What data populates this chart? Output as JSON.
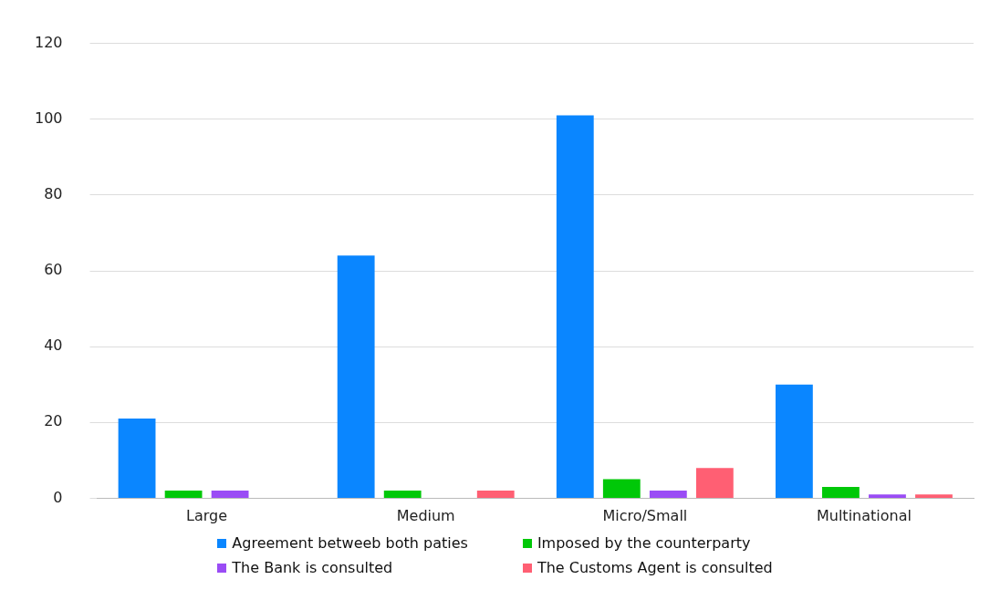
{
  "chart_data": {
    "type": "bar",
    "categories": [
      "Large",
      "Medium",
      "Micro/Small",
      "Multinational"
    ],
    "series": [
      {
        "name": "Agreement betweeb both paties",
        "color": "#0a86ff",
        "values": [
          21,
          64,
          101,
          30
        ]
      },
      {
        "name": "Imposed by the counterparty",
        "color": "#00c808",
        "values": [
          2,
          2,
          5,
          3
        ]
      },
      {
        "name": "The Bank is consulted",
        "color": "#9a4cf5",
        "values": [
          2,
          0,
          2,
          1
        ]
      },
      {
        "name": "The Customs Agent is consulted",
        "color": "#ff5f73",
        "values": [
          0,
          2,
          8,
          1
        ]
      }
    ],
    "ylim": [
      0,
      120
    ],
    "yticks": [
      0,
      20,
      40,
      60,
      80,
      100,
      120
    ],
    "grid": "y",
    "legend": "bottom"
  }
}
